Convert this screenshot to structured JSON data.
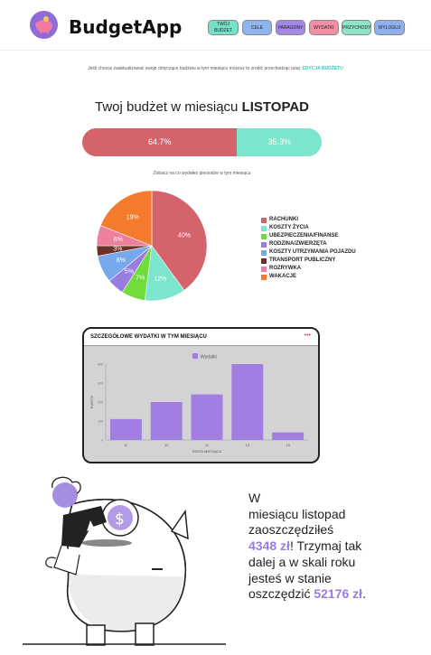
{
  "header": {
    "app_name": "BudgetApp",
    "logo_icon": "piggy-bank-icon",
    "nav": [
      {
        "id": "twoj-budzet",
        "label_line1": "TWÓJ",
        "label_line2": "BUDŻET",
        "color": "#76e0c8"
      },
      {
        "id": "cele",
        "label": "CELE",
        "color": "#8fb4f0"
      },
      {
        "id": "paragony",
        "label": "PARAGONY",
        "color": "#a487e6"
      },
      {
        "id": "wydatki",
        "label": "WYDATKI",
        "color": "#f28fa6"
      },
      {
        "id": "przychody",
        "label": "PRZYCHODY",
        "color": "#8de4c8"
      },
      {
        "id": "wyloguj",
        "label": "WYLOGUJ",
        "color": "#8fb0ee"
      }
    ]
  },
  "intro": {
    "text": "Jeśli chcesz zaaktualizować swoje dotyczące budżetu w tym miesiącu możesz to zrobić przechodząc tutaj:",
    "link": "EDYCJA BUDŻETU"
  },
  "budget": {
    "title_prefix": "Twoj budżet w miesiącu",
    "month": "LISTOPAD",
    "spent_pct_label": "64.7%",
    "remaining_pct_label": "35.3%",
    "spent_pct": 64.7,
    "remaining_pct": 35.3,
    "spent_color": "#d5636c",
    "remaining_color": "#7be6cd"
  },
  "pie_caption": "Zobacz na co wydałeś pieniodze w tym miesiącu",
  "pie_chart": {
    "type": "pie",
    "slices": [
      {
        "name": "RACHUNKI",
        "value": 40,
        "label": "40%",
        "color": "#d5636c"
      },
      {
        "name": "KOSZTY ŻYCIA",
        "value": 12,
        "label": "12%",
        "color": "#7be6cd"
      },
      {
        "name": "UBEZPIECZENIA/FINANSE",
        "value": 7,
        "label": "7%",
        "color": "#6fdc3c"
      },
      {
        "name": "RODZINA/ZWIERZĘTA",
        "value": 5,
        "label": "5%",
        "color": "#9a7be0"
      },
      {
        "name": "KOSZTY UTRZYMANIA POJAZDU",
        "value": 8,
        "label": "8%",
        "color": "#78a8ec"
      },
      {
        "name": "TRANSPORT PUBLICZNY",
        "value": 3,
        "label": "3%",
        "color": "#6b3026"
      },
      {
        "name": "ROZRYWKA",
        "value": 6,
        "label": "6%",
        "color": "#ee7f9d"
      },
      {
        "name": "WAKACJE",
        "value": 19,
        "label": "19%",
        "color": "#f47a2c"
      }
    ]
  },
  "detail_chart": {
    "title": "SZCZEGÓŁOWE WYDATKI W TYM MIESIĄCU",
    "menu_icon": "more-horizontal-icon",
    "legend": "Wydatki",
    "xlabel": "DZIEŃ MIESIĄCA",
    "ylabel": "KWOTA",
    "bar_color": "#a07ee2"
  },
  "chart_data": {
    "type": "bar",
    "categories": [
      "8",
      "10",
      "11",
      "13",
      "15"
    ],
    "values": [
      110,
      200,
      240,
      400,
      40
    ],
    "series": [
      {
        "name": "Wydatki",
        "values": [
          110,
          200,
          240,
          400,
          40
        ]
      }
    ],
    "xlabel": "DZIEŃ MIESIĄCA",
    "ylabel": "KWOTA",
    "ylim": [
      0,
      400
    ],
    "yticks": [
      0,
      100,
      200,
      300,
      400
    ],
    "grid": false,
    "legend": "top-center"
  },
  "savings": {
    "line1": "W",
    "line2": "miesiącu listopad",
    "line3": "zaoszczędziłeś",
    "amount_month": "4348 zł",
    "text_mid": "! Trzymaj tak dalej a w skali roku jesteś w stanie oszczędzić ",
    "amount_year": "52176 zł",
    "text_end": "."
  },
  "illustration": {
    "icon": "piggy-bank-coin-illustration"
  }
}
